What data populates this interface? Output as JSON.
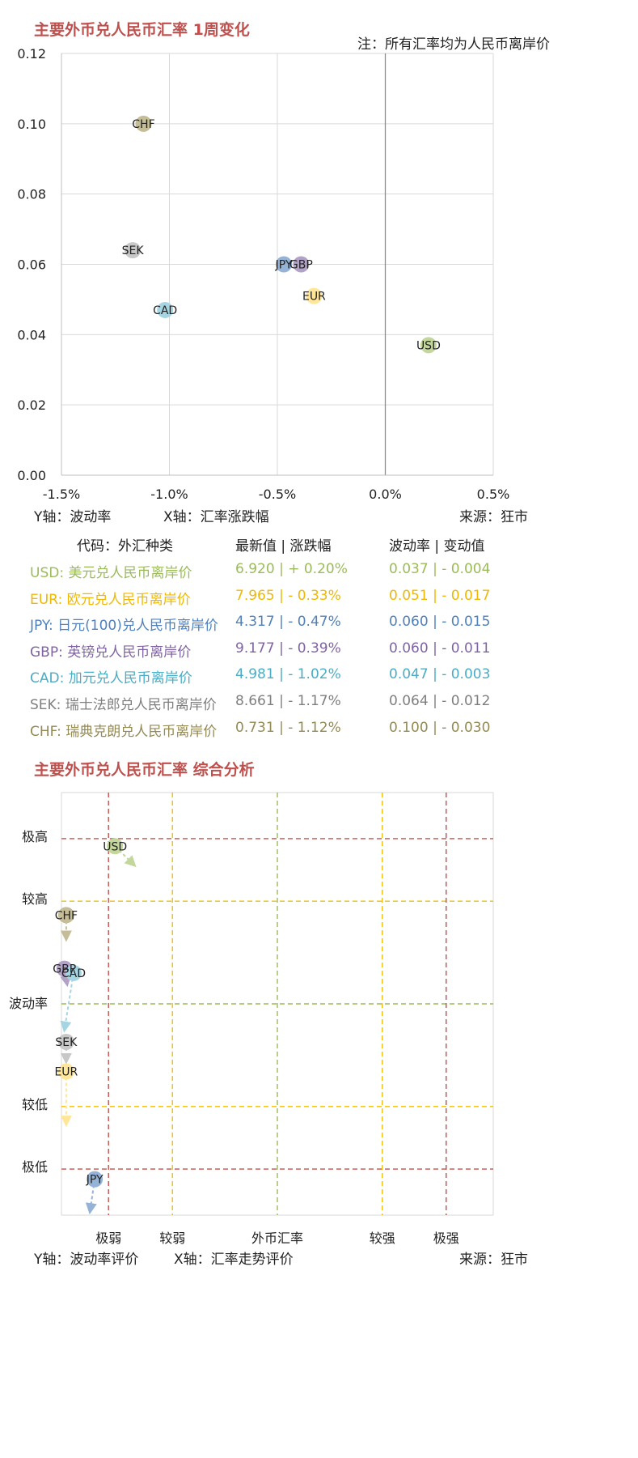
{
  "chart1": {
    "title": "主要外币兑人民币汇率 1周变化",
    "note": "注：所有汇率均为人民币离岸价",
    "y_axis_label": "Y轴：波动率",
    "x_axis_label": "X轴：汇率涨跌幅",
    "source": "来源：狂市",
    "x_ticks": [
      "-1.5%",
      "-1.0%",
      "-0.5%",
      "0.0%",
      "0.5%"
    ],
    "y_ticks": [
      "0.00",
      "0.02",
      "0.04",
      "0.06",
      "0.08",
      "0.10",
      "0.12"
    ]
  },
  "table": {
    "headers": {
      "code": "代码：外汇种类",
      "latest": "最新值 | 涨跌幅",
      "vol": "波动率 | 变动值"
    },
    "rows": [
      {
        "code": "USD",
        "name": "USD: 美元兑人民币离岸价",
        "latest": "6.920 |  + 0.20%",
        "vol": "0.037 |  - 0.004",
        "color": "#9bbb59"
      },
      {
        "code": "EUR",
        "name": "EUR: 欧元兑人民币离岸价",
        "latest": "7.965 |  - 0.33%",
        "vol": "0.051 |  - 0.017",
        "color": "#f0b800"
      },
      {
        "code": "JPY",
        "name": "JPY: 日元(100)兑人民币离岸价",
        "latest": "4.317 |  - 0.47%",
        "vol": "0.060 |  - 0.015",
        "color": "#4f81bd"
      },
      {
        "code": "GBP",
        "name": "GBP: 英镑兑人民币离岸价",
        "latest": "9.177 |  - 0.39%",
        "vol": "0.060 |  - 0.011",
        "color": "#8064a2"
      },
      {
        "code": "CAD",
        "name": "CAD: 加元兑人民币离岸价",
        "latest": "4.981 |  - 1.02%",
        "vol": "0.047 |  - 0.003",
        "color": "#4bacc6"
      },
      {
        "code": "SEK",
        "name": "SEK: 瑞士法郎兑人民币离岸价",
        "latest": "8.661 |  - 1.17%",
        "vol": "0.064 |  - 0.012",
        "color": "#7f7f7f"
      },
      {
        "code": "CHF",
        "name": "CHF: 瑞典克朗兑人民币离岸价",
        "latest": "0.731 |  - 1.12%",
        "vol": "0.100 |  - 0.030",
        "color": "#948a54"
      }
    ]
  },
  "chart2": {
    "title": "主要外币兑人民币汇率 综合分析",
    "y_levels": [
      "极高",
      "较高",
      "波动率",
      "较低",
      "极低"
    ],
    "x_levels": [
      "极弱",
      "较弱",
      "外币汇率",
      "较强",
      "极强"
    ],
    "y_axis_label": "Y轴：波动率评价",
    "x_axis_label": "X轴：汇率走势评价",
    "source": "来源：狂市"
  },
  "chart_data": [
    {
      "type": "scatter",
      "title": "主要外币兑人民币汇率 1周变化",
      "xlabel": "X轴：汇率涨跌幅",
      "ylabel": "Y轴：波动率",
      "xlim": [
        -1.5,
        0.5
      ],
      "ylim": [
        0,
        0.12
      ],
      "grid": true,
      "points": [
        {
          "label": "USD",
          "x": 0.2,
          "y": 0.037,
          "color": "#c3d69b"
        },
        {
          "label": "EUR",
          "x": -0.33,
          "y": 0.051,
          "color": "#ffe699"
        },
        {
          "label": "JPY",
          "x": -0.47,
          "y": 0.06,
          "color": "#95b3d7"
        },
        {
          "label": "GBP",
          "x": -0.39,
          "y": 0.06,
          "color": "#b3a2c7"
        },
        {
          "label": "CAD",
          "x": -1.02,
          "y": 0.047,
          "color": "#a5d5e2"
        },
        {
          "label": "SEK",
          "x": -1.17,
          "y": 0.064,
          "color": "#c8c8c8"
        },
        {
          "label": "CHF",
          "x": -1.12,
          "y": 0.1,
          "color": "#c4bd97"
        }
      ]
    },
    {
      "type": "scatter",
      "title": "主要外币兑人民币汇率 综合分析",
      "xlabel": "X轴：汇率走势评价",
      "ylabel": "Y轴：波动率评价",
      "xlim": [
        0,
        100
      ],
      "ylim": [
        0,
        100
      ],
      "points": [
        {
          "label": "USD",
          "x": 12.4,
          "y": 87.3,
          "dx": 4,
          "dy": -4,
          "color": "#c3d69b"
        },
        {
          "label": "CHF",
          "x": 1.1,
          "y": 71.0,
          "dx": 0,
          "dy": -5,
          "color": "#c4bd97"
        },
        {
          "label": "GBP",
          "x": 0.7,
          "y": 58.3,
          "dx": 0.5,
          "dy": -3,
          "color": "#b3a2c7"
        },
        {
          "label": "CAD",
          "x": 2.8,
          "y": 57.3,
          "dx": -2,
          "dy": -12.8,
          "color": "#a5d5e2"
        },
        {
          "label": "SEK",
          "x": 1.1,
          "y": 41.0,
          "dx": 0,
          "dy": -4,
          "color": "#c8c8c8"
        },
        {
          "label": "EUR",
          "x": 1.1,
          "y": 34.0,
          "dx": 0,
          "dy": -11.8,
          "color": "#ffe699"
        },
        {
          "label": "JPY",
          "x": 7.7,
          "y": 8.5,
          "dx": -1,
          "dy": -7,
          "color": "#95b3d7"
        }
      ]
    }
  ]
}
